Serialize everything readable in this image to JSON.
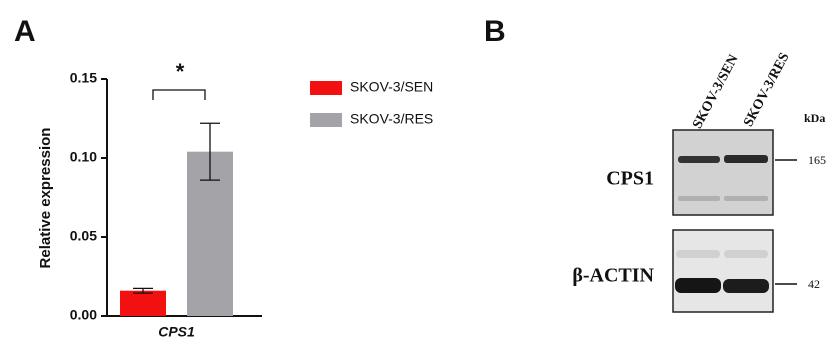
{
  "panels": {
    "a": "A",
    "b": "B"
  },
  "chart_data": {
    "type": "bar",
    "ylabel": "Relative expression",
    "categories": [
      "CPS1"
    ],
    "series": [
      {
        "name": "SKOV-3/SEN",
        "color": "#f21010",
        "values": [
          0.016
        ],
        "errors": [
          0.0015
        ]
      },
      {
        "name": "SKOV-3/RES",
        "color": "#a3a3a8",
        "values": [
          0.104
        ],
        "errors": [
          0.018
        ]
      }
    ],
    "ylim": [
      0,
      0.15
    ],
    "yticks": [
      {
        "value": 0,
        "label": "0.00"
      },
      {
        "value": 0.05,
        "label": "0.05"
      },
      {
        "value": 0.1,
        "label": "0.10"
      },
      {
        "value": 0.15,
        "label": "0.15"
      }
    ],
    "annotation": "*"
  },
  "blot": {
    "lanes": [
      "SKOV-3/SEN",
      "SKOV-3/RES"
    ],
    "unit": "kDa",
    "rows": [
      {
        "label": "CPS1",
        "marker": "165"
      },
      {
        "label": "β-ACTIN",
        "marker": "42"
      }
    ]
  }
}
